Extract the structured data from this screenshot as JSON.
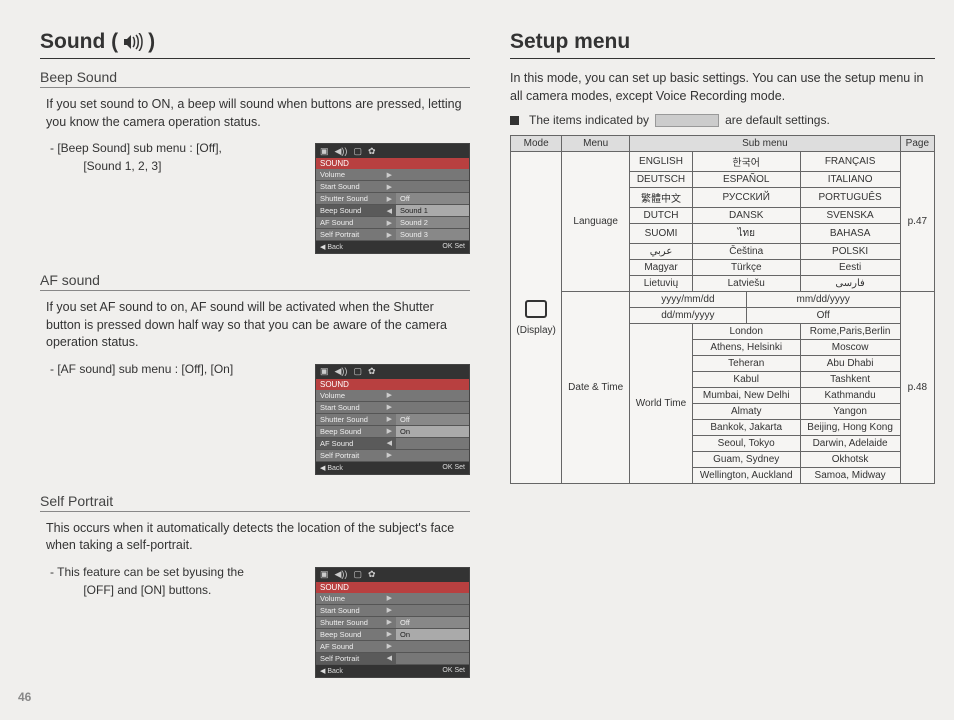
{
  "page_number": "46",
  "left": {
    "heading": "Sound (",
    "heading_close": ")",
    "sections": [
      {
        "title": "Beep Sound",
        "body": "If you set sound to ON, a beep will sound when buttons are pressed, letting you know the camera operation status.",
        "sub_line1": "- [Beep Sound] sub menu : [Off],",
        "sub_line2": "[Sound 1, 2, 3]",
        "lcd": {
          "head": "SOUND",
          "left_items": [
            "Volume",
            "Start Sound",
            "Shutter Sound",
            "Beep Sound",
            "AF Sound",
            "Self Portrait"
          ],
          "selected_index": 3,
          "right_items": [
            "Off",
            "Sound 1",
            "Sound 2",
            "Sound 3"
          ],
          "right_highlight_index": 1,
          "footer_left": "◀   Back",
          "footer_right": "OK   Set"
        }
      },
      {
        "title": "AF sound",
        "body": "If you set AF sound to on, AF sound will be activated when the Shutter button is pressed down half way so that you can be aware of the camera operation status.",
        "sub_line1": "- [AF sound] sub menu : [Off], [On]",
        "sub_line2": "",
        "lcd": {
          "head": "SOUND",
          "left_items": [
            "Volume",
            "Start Sound",
            "Shutter Sound",
            "Beep Sound",
            "AF Sound",
            "Self Portrait"
          ],
          "selected_index": 4,
          "right_items": [
            "Off",
            "On"
          ],
          "right_highlight_index": 1,
          "footer_left": "◀   Back",
          "footer_right": "OK   Set"
        }
      },
      {
        "title": "Self Portrait",
        "body": "This occurs when it automatically detects the location of the subject's face when taking a self-portrait.",
        "sub_line1": "- This feature can be set byusing the",
        "sub_line2": "[OFF] and [ON] buttons.",
        "lcd": {
          "head": "SOUND",
          "left_items": [
            "Volume",
            "Start Sound",
            "Shutter Sound",
            "Beep Sound",
            "AF Sound",
            "Self Portrait"
          ],
          "selected_index": 5,
          "right_items": [
            "Off",
            "On"
          ],
          "right_highlight_index": 1,
          "footer_left": "◀   Back",
          "footer_right": "OK   Set"
        }
      }
    ]
  },
  "right": {
    "heading": "Setup menu",
    "intro": "In this mode, you can set up basic settings. You can use the setup menu in all camera modes, except Voice Recording mode.",
    "default_note_pre": "The items indicated by",
    "default_note_post": "are default settings.",
    "table": {
      "headers": {
        "mode": "Mode",
        "menu": "Menu",
        "sub": "Sub menu",
        "page": "Page"
      },
      "mode_label": "(Display)",
      "language": {
        "menu_label": "Language",
        "page": "p.47",
        "rows": [
          [
            "ENGLISH",
            "한국어",
            "FRANÇAIS"
          ],
          [
            "DEUTSCH",
            "ESPAÑOL",
            "ITALIANO"
          ],
          [
            "繁體中文",
            "РУССКИЙ",
            "PORTUGUÊS"
          ],
          [
            "DUTCH",
            "DANSK",
            "SVENSKA"
          ],
          [
            "SUOMI",
            "ไทย",
            "BAHASA"
          ],
          [
            "عربي",
            "Čeština",
            "POLSKI"
          ],
          [
            "Magyar",
            "Türkçe",
            "Eesti"
          ],
          [
            "Lietuvių",
            "Latviešu",
            "فارسی"
          ]
        ]
      },
      "datetime": {
        "menu_label": "Date & Time",
        "page": "p.48",
        "format_rows": [
          [
            "yyyy/mm/dd",
            "mm/dd/yyyy"
          ],
          [
            "dd/mm/yyyy",
            "Off"
          ]
        ],
        "format_default": [
          1,
          1
        ],
        "worldtime_label": "World Time",
        "cities": [
          [
            "London",
            "Rome,Paris,Berlin"
          ],
          [
            "Athens, Helsinki",
            "Moscow"
          ],
          [
            "Teheran",
            "Abu Dhabi"
          ],
          [
            "Kabul",
            "Tashkent"
          ],
          [
            "Mumbai, New Delhi",
            "Kathmandu"
          ],
          [
            "Almaty",
            "Yangon"
          ],
          [
            "Bankok, Jakarta",
            "Beijing, Hong Kong"
          ],
          [
            "Seoul, Tokyo",
            "Darwin, Adelaide"
          ],
          [
            "Guam, Sydney",
            "Okhotsk"
          ],
          [
            "Wellington, Auckland",
            "Samoa, Midway"
          ]
        ]
      }
    }
  },
  "colors": {
    "page_bg": "#f0efed",
    "rule": "#333333",
    "lcd_head": "#b84040",
    "default_swatch": "#cccccc"
  }
}
